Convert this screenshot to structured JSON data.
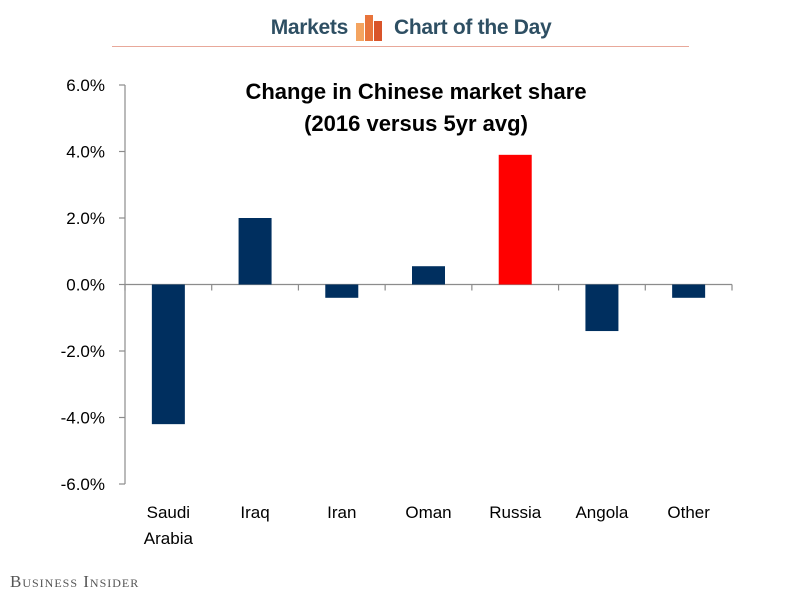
{
  "header": {
    "left_label": "Markets",
    "right_label": "Chart of the Day",
    "logo_colors": [
      "#f4a460",
      "#e8743b",
      "#d9542a"
    ]
  },
  "footer": {
    "brand": "Business Insider"
  },
  "chart_data": {
    "type": "bar",
    "title": "Change in Chinese market share",
    "subtitle": "(2016 versus 5yr avg)",
    "categories": [
      "Saudi Arabia",
      "Iraq",
      "Iran",
      "Oman",
      "Russia",
      "Angola",
      "Other"
    ],
    "category_lines": [
      [
        "Saudi",
        "Arabia"
      ],
      [
        "Iraq"
      ],
      [
        "Iran"
      ],
      [
        "Oman"
      ],
      [
        "Russia"
      ],
      [
        "Angola"
      ],
      [
        "Other"
      ]
    ],
    "values": [
      -4.2,
      2.0,
      -0.4,
      0.55,
      3.9,
      -1.4,
      -0.4
    ],
    "bar_colors": [
      "#002f5f",
      "#002f5f",
      "#002f5f",
      "#002f5f",
      "#ff0000",
      "#002f5f",
      "#002f5f"
    ],
    "ylim": [
      -6,
      6
    ],
    "yticks": [
      6,
      4,
      2,
      0,
      -2,
      -4,
      -6
    ],
    "ytick_labels": [
      "6.0%",
      "4.0%",
      "2.0%",
      "0.0%",
      "-2.0%",
      "-4.0%",
      "-6.0%"
    ],
    "xlabel": "",
    "ylabel": "",
    "grid": false,
    "legend": "none"
  }
}
